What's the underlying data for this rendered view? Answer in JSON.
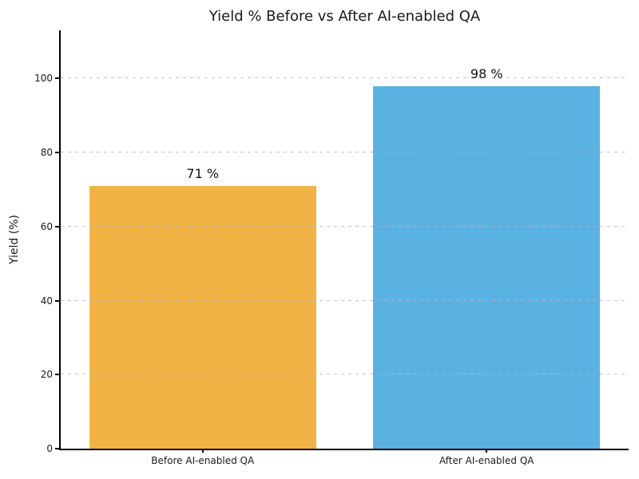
{
  "chart_data": {
    "type": "bar",
    "title": "Yield % Before vs After AI-enabled QA",
    "categories": [
      "Before AI-enabled QA",
      "After AI-enabled QA"
    ],
    "values": [
      71,
      98
    ],
    "bar_value_labels": [
      "71 %",
      "98 %"
    ],
    "bar_colors": [
      "#F2B344",
      "#5AB2E2"
    ],
    "xlabel": "",
    "ylabel": "Yield (%)",
    "ylim": [
      0,
      113
    ],
    "yticks": [
      0,
      20,
      40,
      60,
      80,
      100
    ],
    "ytick_labels": [
      "0",
      "20",
      "40",
      "60",
      "80",
      "100"
    ],
    "grid": "horizontal dashed gridlines drawn over bars",
    "legend_position": "none",
    "bar_width_fraction": 0.8,
    "text_color": "#1a1a1a",
    "gridline_color": "#b9b9b9",
    "spine_color": "#000000"
  }
}
